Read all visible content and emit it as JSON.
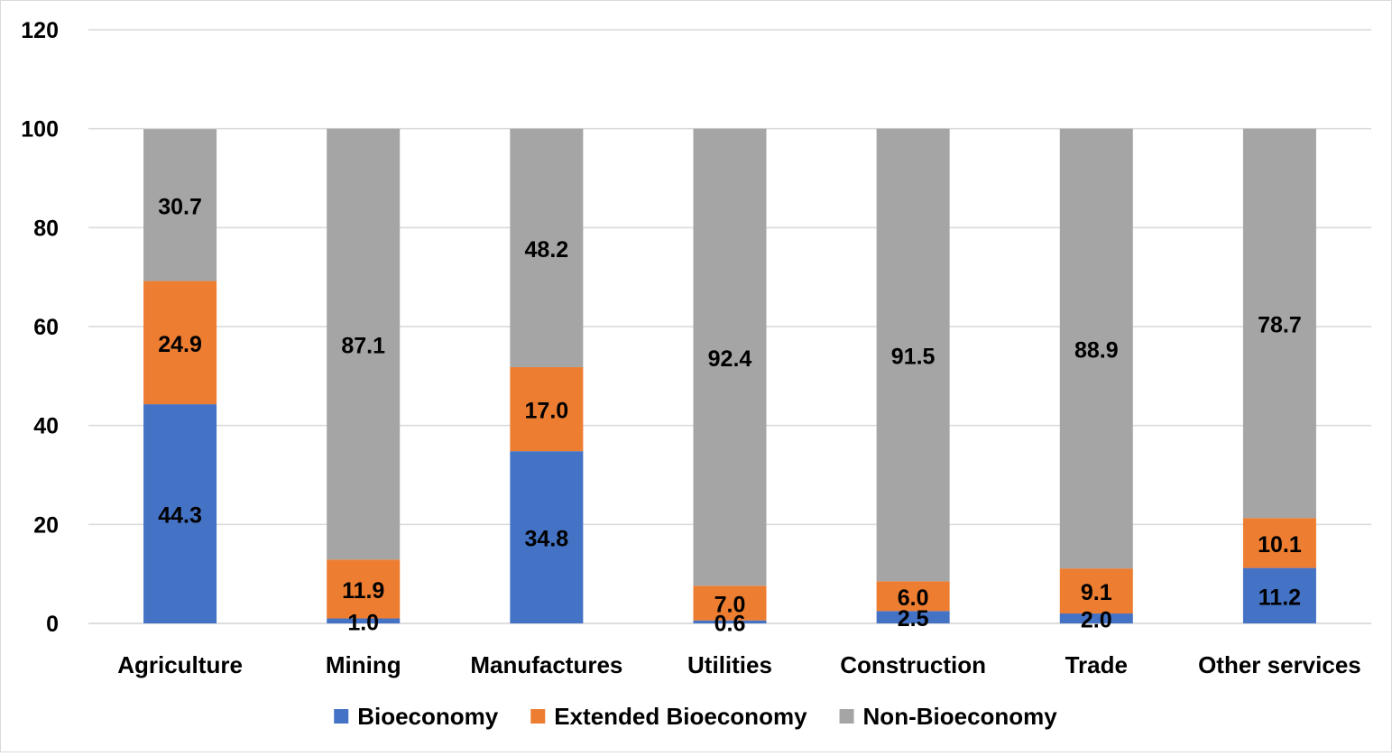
{
  "chart_data": {
    "type": "bar",
    "stacked": true,
    "title": "",
    "xlabel": "",
    "ylabel": "",
    "ylim": [
      0,
      120
    ],
    "yticks": [
      0,
      20,
      40,
      60,
      80,
      100,
      120
    ],
    "grid": true,
    "legend_position": "bottom",
    "categories": [
      "Agriculture",
      "Mining",
      "Manufactures",
      "Utilities",
      "Construction",
      "Trade",
      "Other services"
    ],
    "series": [
      {
        "name": "Bioeconomy",
        "color": "#4472c4",
        "values": [
          44.3,
          1.0,
          34.8,
          0.6,
          2.5,
          2.0,
          11.2
        ],
        "labels": [
          "44.3",
          "1.0",
          "34.8",
          "0.6",
          "2.5",
          "2.0",
          "11.2"
        ]
      },
      {
        "name": "Extended Bioeconomy",
        "color": "#ed7d31",
        "values": [
          24.9,
          11.9,
          17.0,
          7.0,
          6.0,
          9.1,
          10.1
        ],
        "labels": [
          "24.9",
          "11.9",
          "17.0",
          "7.0",
          "6.0",
          "9.1",
          "10.1"
        ]
      },
      {
        "name": "Non-Bioeconomy",
        "color": "#a5a5a5",
        "values": [
          30.7,
          87.1,
          48.2,
          92.4,
          91.5,
          88.9,
          78.7
        ],
        "labels": [
          "30.7",
          "87.1",
          "48.2",
          "92.4",
          "91.5",
          "88.9",
          "78.7"
        ]
      }
    ]
  }
}
